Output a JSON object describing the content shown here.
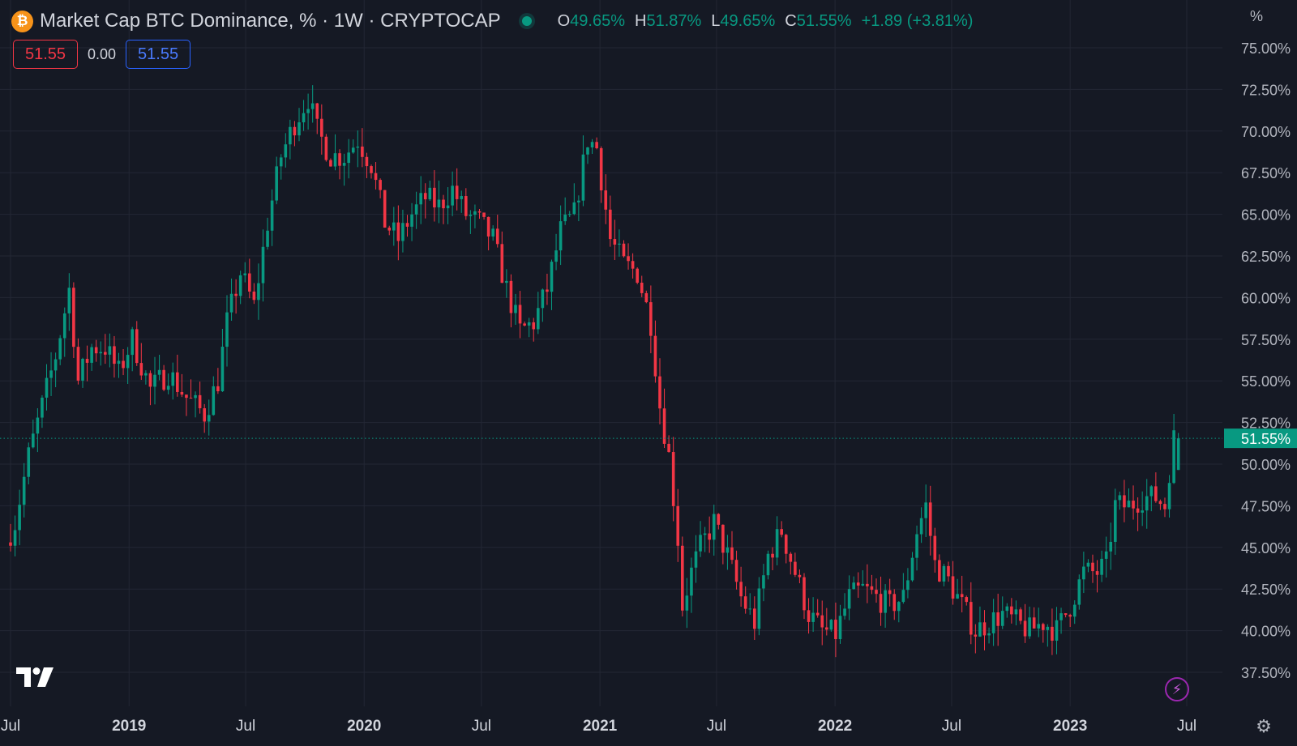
{
  "header": {
    "symbol_title": "Market Cap BTC Dominance, % · 1W · CRYPTOCAP",
    "logo_glyph": "₿",
    "status": "live",
    "ohlc": {
      "o_label": "O",
      "o_value": "49.65%",
      "h_label": "H",
      "h_value": "51.87%",
      "l_label": "L",
      "l_value": "49.65%",
      "c_label": "C",
      "c_value": "51.55%",
      "change": "+1.89 (+3.81%)"
    }
  },
  "trade": {
    "sell_price": "51.55",
    "spread": "0.00",
    "buy_price": "51.55"
  },
  "axis": {
    "unit_label": "%"
  },
  "colors": {
    "background": "#151924",
    "up": "#089981",
    "down": "#f23645",
    "grid": "#232734",
    "axis_text": "#b2b5be",
    "last_price_badge": "#089981"
  },
  "icons": {
    "brand": "tradingview-logo-icon",
    "bolt": "lightning-icon",
    "settings": "gear-icon"
  },
  "chart_data": {
    "type": "candlestick",
    "interval": "1W",
    "y_unit": "%",
    "ylim": [
      35.5,
      76.0
    ],
    "y_ticks": [
      37.5,
      40.0,
      42.5,
      45.0,
      47.5,
      50.0,
      52.5,
      55.0,
      57.5,
      60.0,
      62.5,
      65.0,
      67.5,
      70.0,
      72.5,
      75.0
    ],
    "y_tick_labels": [
      "37.50%",
      "40.00%",
      "42.50%",
      "45.00%",
      "47.50%",
      "50.00%",
      "52.50%",
      "55.00%",
      "57.50%",
      "60.00%",
      "62.50%",
      "65.00%",
      "67.50%",
      "70.00%",
      "72.50%",
      "75.00%"
    ],
    "x_range": [
      "2018-07-01",
      "2023-07-20"
    ],
    "x_ticks": [
      {
        "date": "2018-07-01",
        "label": "Jul",
        "bold": false
      },
      {
        "date": "2019-01-01",
        "label": "2019",
        "bold": true
      },
      {
        "date": "2019-07-01",
        "label": "Jul",
        "bold": false
      },
      {
        "date": "2020-01-01",
        "label": "2020",
        "bold": true
      },
      {
        "date": "2020-07-01",
        "label": "Jul",
        "bold": false
      },
      {
        "date": "2021-01-01",
        "label": "2021",
        "bold": true
      },
      {
        "date": "2021-07-01",
        "label": "Jul",
        "bold": false
      },
      {
        "date": "2022-01-01",
        "label": "2022",
        "bold": true
      },
      {
        "date": "2022-07-01",
        "label": "Jul",
        "bold": false
      },
      {
        "date": "2023-01-01",
        "label": "2023",
        "bold": true
      },
      {
        "date": "2023-07-01",
        "label": "Jul",
        "bold": false
      }
    ],
    "last_price": 51.55,
    "last_price_label": "51.55%",
    "price_anchors": [
      [
        "2018-07-01",
        45.3
      ],
      [
        "2018-07-15",
        46.5
      ],
      [
        "2018-08-05",
        50.5
      ],
      [
        "2018-08-26",
        53.5
      ],
      [
        "2018-09-16",
        56.5
      ],
      [
        "2018-10-07",
        60.5
      ],
      [
        "2018-10-21",
        55.0
      ],
      [
        "2018-11-11",
        57.0
      ],
      [
        "2018-12-02",
        57.0
      ],
      [
        "2018-12-23",
        55.5
      ],
      [
        "2019-01-13",
        57.5
      ],
      [
        "2019-02-10",
        54.5
      ],
      [
        "2019-03-10",
        55.5
      ],
      [
        "2019-04-07",
        54.0
      ],
      [
        "2019-05-05",
        53.0
      ],
      [
        "2019-05-26",
        55.0
      ],
      [
        "2019-06-09",
        58.5
      ],
      [
        "2019-06-30",
        61.5
      ],
      [
        "2019-07-21",
        59.5
      ],
      [
        "2019-08-11",
        64.5
      ],
      [
        "2019-09-01",
        68.5
      ],
      [
        "2019-09-22",
        70.5
      ],
      [
        "2019-10-13",
        72.0
      ],
      [
        "2019-10-27",
        70.0
      ],
      [
        "2019-11-17",
        68.5
      ],
      [
        "2019-12-08",
        68.5
      ],
      [
        "2019-12-29",
        69.5
      ],
      [
        "2020-01-19",
        68.0
      ],
      [
        "2020-02-09",
        64.5
      ],
      [
        "2020-03-01",
        63.5
      ],
      [
        "2020-03-22",
        65.0
      ],
      [
        "2020-04-12",
        66.0
      ],
      [
        "2020-05-03",
        65.5
      ],
      [
        "2020-05-24",
        66.5
      ],
      [
        "2020-06-14",
        65.0
      ],
      [
        "2020-07-05",
        64.5
      ],
      [
        "2020-07-26",
        63.5
      ],
      [
        "2020-08-16",
        60.5
      ],
      [
        "2020-09-06",
        58.0
      ],
      [
        "2020-09-27",
        58.5
      ],
      [
        "2020-10-18",
        60.5
      ],
      [
        "2020-11-08",
        64.0
      ],
      [
        "2020-11-29",
        65.0
      ],
      [
        "2020-12-20",
        69.5
      ],
      [
        "2021-01-03",
        69.0
      ],
      [
        "2021-01-24",
        63.5
      ],
      [
        "2021-02-14",
        62.0
      ],
      [
        "2021-03-07",
        61.5
      ],
      [
        "2021-03-28",
        58.5
      ],
      [
        "2021-04-11",
        53.5
      ],
      [
        "2021-04-25",
        50.5
      ],
      [
        "2021-05-09",
        45.5
      ],
      [
        "2021-05-16",
        41.5
      ],
      [
        "2021-05-30",
        43.5
      ],
      [
        "2021-06-13",
        45.0
      ],
      [
        "2021-07-04",
        46.5
      ],
      [
        "2021-07-25",
        44.5
      ],
      [
        "2021-08-15",
        42.0
      ],
      [
        "2021-09-05",
        40.5
      ],
      [
        "2021-09-26",
        44.5
      ],
      [
        "2021-10-17",
        46.0
      ],
      [
        "2021-11-07",
        43.5
      ],
      [
        "2021-11-28",
        41.0
      ],
      [
        "2021-12-19",
        40.0
      ],
      [
        "2022-01-09",
        39.8
      ],
      [
        "2022-01-30",
        42.0
      ],
      [
        "2022-02-20",
        42.5
      ],
      [
        "2022-03-13",
        42.0
      ],
      [
        "2022-04-03",
        41.5
      ],
      [
        "2022-04-24",
        42.0
      ],
      [
        "2022-05-15",
        46.0
      ],
      [
        "2022-05-29",
        47.5
      ],
      [
        "2022-06-12",
        44.0
      ],
      [
        "2022-07-03",
        43.0
      ],
      [
        "2022-07-24",
        41.5
      ],
      [
        "2022-08-14",
        40.0
      ],
      [
        "2022-09-04",
        40.5
      ],
      [
        "2022-09-25",
        41.0
      ],
      [
        "2022-10-16",
        40.5
      ],
      [
        "2022-11-06",
        40.0
      ],
      [
        "2022-11-27",
        40.5
      ],
      [
        "2022-12-18",
        40.0
      ],
      [
        "2023-01-08",
        41.5
      ],
      [
        "2023-01-29",
        43.5
      ],
      [
        "2023-02-19",
        43.5
      ],
      [
        "2023-03-05",
        44.0
      ],
      [
        "2023-03-19",
        47.5
      ],
      [
        "2023-04-09",
        47.5
      ],
      [
        "2023-04-30",
        48.0
      ],
      [
        "2023-05-21",
        48.0
      ],
      [
        "2023-06-04",
        47.5
      ],
      [
        "2023-06-11",
        49.65
      ],
      [
        "2023-06-18",
        51.55
      ]
    ],
    "last_bar": {
      "date": "2023-06-18",
      "open": 49.65,
      "high": 51.87,
      "low": 49.65,
      "close": 51.55
    }
  }
}
